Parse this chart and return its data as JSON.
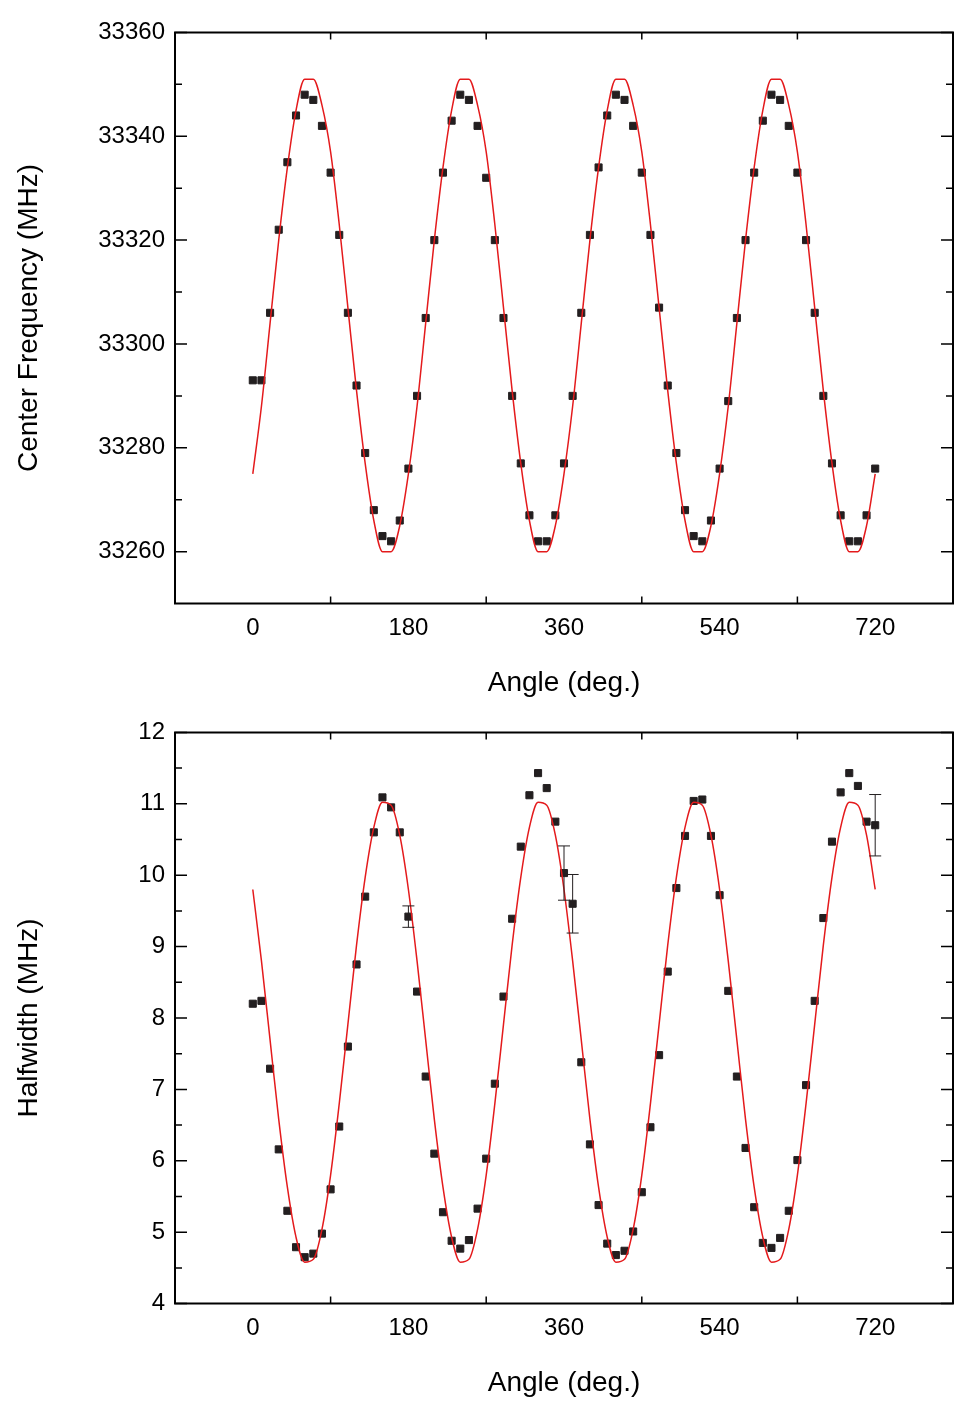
{
  "chart_data": [
    {
      "type": "scatter",
      "xlabel": "Angle (deg.)",
      "ylabel": "Center Frequency (MHz)",
      "xlim": [
        -90,
        810
      ],
      "ylim": [
        33250,
        33360
      ],
      "xticks": [
        {
          "value": -90,
          "label": null
        },
        0,
        {
          "value": 90,
          "label": null
        },
        180,
        {
          "value": 270,
          "label": null
        },
        360,
        {
          "value": 450,
          "label": null
        },
        540,
        {
          "value": 630,
          "label": null
        },
        720,
        {
          "value": 810,
          "label": null
        }
      ],
      "yticks": [
        33260,
        {
          "value": 33270,
          "label": null
        },
        33280,
        {
          "value": 33290,
          "label": null
        },
        33300,
        {
          "value": 33310,
          "label": null
        },
        33320,
        {
          "value": 33330,
          "label": null
        },
        33340,
        {
          "value": 33350,
          "label": null
        },
        33360
      ],
      "grid": false,
      "legend": false,
      "series": [
        {
          "type": "scatter",
          "color": "#231f20",
          "marker": "square",
          "x": [
            0,
            10,
            20,
            30,
            40,
            50,
            60,
            70,
            80,
            90,
            100,
            110,
            120,
            130,
            140,
            150,
            160,
            170,
            180,
            190,
            200,
            210,
            220,
            230,
            240,
            250,
            260,
            270,
            280,
            290,
            300,
            310,
            320,
            330,
            340,
            350,
            360,
            370,
            380,
            390,
            400,
            410,
            420,
            430,
            440,
            450,
            460,
            470,
            480,
            490,
            500,
            510,
            520,
            530,
            540,
            550,
            560,
            570,
            580,
            590,
            600,
            610,
            620,
            630,
            640,
            650,
            660,
            670,
            680,
            690,
            700,
            710,
            720
          ],
          "values": [
            33293,
            33293,
            33306,
            33322,
            33335,
            33344,
            33348,
            33347,
            33342,
            33333,
            33321,
            33306,
            33292,
            33279,
            33268,
            33263,
            33262,
            33266,
            33276,
            33290,
            33305,
            33320,
            33333,
            33343,
            33348,
            33347,
            33342,
            33332,
            33320,
            33305,
            33290,
            33277,
            33267,
            33262,
            33262,
            33267,
            33277,
            33290,
            33306,
            33321,
            33334,
            33344,
            33348,
            33347,
            33342,
            33333,
            33321,
            33307,
            33292,
            33279,
            33268,
            33263,
            33262,
            33266,
            33276,
            33289,
            33305,
            33320,
            33333,
            33343,
            33348,
            33347,
            33342,
            33333,
            33320,
            33306,
            33290,
            33277,
            33267,
            33262,
            33262,
            33267,
            33276
          ]
        },
        {
          "type": "line",
          "color": "#e41a1c",
          "marker": "none",
          "line_style": "solid",
          "x": [
            0,
            10,
            20,
            30,
            40,
            50,
            60,
            70,
            80,
            90,
            100,
            110,
            120,
            130,
            140,
            150,
            160,
            170,
            180,
            190,
            200,
            210,
            220,
            230,
            240,
            250,
            260,
            270,
            280,
            290,
            300,
            310,
            320,
            330,
            340,
            350,
            360,
            370,
            380,
            390,
            400,
            410,
            420,
            430,
            440,
            450,
            460,
            470,
            480,
            490,
            500,
            510,
            520,
            530,
            540,
            550,
            560,
            570,
            580,
            590,
            600,
            610,
            620,
            630,
            640,
            650,
            660,
            670,
            680,
            690,
            700,
            710,
            720
          ],
          "values": [
            33275,
            33288,
            33304,
            33320,
            33334,
            33345,
            33351,
            33351,
            33346,
            33337,
            33323,
            33307,
            33291,
            33277,
            33266,
            33260,
            33260,
            33265,
            33275,
            33288,
            33304,
            33320,
            33334,
            33345,
            33351,
            33351,
            33346,
            33337,
            33323,
            33307,
            33291,
            33277,
            33266,
            33260,
            33260,
            33265,
            33275,
            33288,
            33304,
            33320,
            33334,
            33345,
            33351,
            33351,
            33346,
            33337,
            33323,
            33307,
            33291,
            33277,
            33266,
            33260,
            33260,
            33265,
            33275,
            33288,
            33304,
            33320,
            33334,
            33345,
            33351,
            33351,
            33346,
            33337,
            33323,
            33307,
            33291,
            33277,
            33266,
            33260,
            33260,
            33265,
            33275
          ]
        }
      ]
    },
    {
      "type": "scatter",
      "xlabel": "Angle (deg.)",
      "ylabel": "Halfwidth (MHz)",
      "xlim": [
        -90,
        810
      ],
      "ylim": [
        4,
        12
      ],
      "xticks": [
        {
          "value": -90,
          "label": null
        },
        0,
        {
          "value": 90,
          "label": null
        },
        180,
        {
          "value": 270,
          "label": null
        },
        360,
        {
          "value": 450,
          "label": null
        },
        540,
        {
          "value": 630,
          "label": null
        },
        720,
        {
          "value": 810,
          "label": null
        }
      ],
      "yticks": [
        4,
        {
          "value": 4.5,
          "label": null
        },
        5,
        {
          "value": 5.5,
          "label": null
        },
        6,
        {
          "value": 6.5,
          "label": null
        },
        7,
        {
          "value": 7.5,
          "label": null
        },
        8,
        {
          "value": 8.5,
          "label": null
        },
        9,
        {
          "value": 9.5,
          "label": null
        },
        10,
        {
          "value": 10.5,
          "label": null
        },
        11,
        {
          "value": 11.5,
          "label": null
        },
        12
      ],
      "grid": false,
      "legend": false,
      "series": [
        {
          "type": "scatter",
          "color": "#231f20",
          "marker": "square",
          "x": [
            0,
            10,
            20,
            30,
            40,
            50,
            60,
            70,
            80,
            90,
            100,
            110,
            120,
            130,
            140,
            150,
            160,
            170,
            180,
            190,
            200,
            210,
            220,
            230,
            240,
            250,
            260,
            270,
            280,
            290,
            300,
            310,
            320,
            330,
            340,
            350,
            360,
            370,
            380,
            390,
            400,
            410,
            420,
            430,
            440,
            450,
            460,
            470,
            480,
            490,
            500,
            510,
            520,
            530,
            540,
            550,
            560,
            570,
            580,
            590,
            600,
            610,
            620,
            630,
            640,
            650,
            660,
            670,
            680,
            690,
            700,
            710,
            720
          ],
          "values": [
            8.2,
            8.24,
            7.29,
            6.16,
            5.3,
            4.79,
            4.65,
            4.7,
            4.98,
            5.6,
            6.48,
            7.6,
            8.75,
            9.7,
            10.6,
            11.09,
            10.95,
            10.6,
            9.42,
            8.37,
            7.18,
            6.1,
            5.28,
            4.88,
            4.77,
            4.89,
            5.33,
            6.03,
            7.08,
            8.3,
            9.39,
            10.4,
            11.12,
            11.43,
            11.22,
            10.75,
            10.03,
            9.6,
            7.38,
            6.23,
            5.38,
            4.84,
            4.68,
            4.74,
            5.01,
            5.56,
            6.47,
            7.48,
            8.65,
            9.82,
            10.55,
            11.04,
            11.06,
            10.55,
            9.72,
            8.38,
            7.18,
            6.18,
            5.35,
            4.85,
            4.78,
            4.92,
            5.3,
            6.01,
            7.06,
            8.24,
            9.4,
            10.47,
            11.16,
            11.43,
            11.25,
            10.75,
            10.7
          ],
          "errors": [
            null,
            null,
            null,
            null,
            null,
            null,
            null,
            null,
            null,
            null,
            null,
            null,
            null,
            null,
            null,
            null,
            null,
            null,
            0.15,
            null,
            null,
            null,
            null,
            null,
            null,
            null,
            null,
            null,
            null,
            null,
            null,
            null,
            null,
            null,
            null,
            null,
            0.38,
            0.41,
            null,
            null,
            null,
            null,
            null,
            null,
            null,
            null,
            null,
            null,
            null,
            null,
            null,
            null,
            null,
            null,
            null,
            null,
            null,
            null,
            null,
            null,
            null,
            null,
            null,
            null,
            null,
            null,
            null,
            null,
            null,
            null,
            null,
            null,
            0.43
          ]
        },
        {
          "type": "line",
          "color": "#e41a1c",
          "marker": "none",
          "line_style": "solid",
          "x": [
            0,
            10,
            20,
            30,
            40,
            50,
            60,
            70,
            80,
            90,
            100,
            110,
            120,
            130,
            140,
            150,
            160,
            170,
            180,
            190,
            200,
            210,
            220,
            230,
            240,
            250,
            260,
            270,
            280,
            290,
            300,
            310,
            320,
            330,
            340,
            350,
            360,
            370,
            380,
            390,
            400,
            410,
            420,
            430,
            440,
            450,
            460,
            470,
            480,
            490,
            500,
            510,
            520,
            530,
            540,
            550,
            560,
            570,
            580,
            590,
            600,
            610,
            620,
            630,
            640,
            650,
            660,
            670,
            680,
            690,
            700,
            710,
            720
          ],
          "values": [
            9.8,
            8.8,
            7.69,
            6.58,
            5.63,
            4.93,
            4.58,
            4.62,
            5.04,
            5.8,
            6.8,
            7.91,
            9.02,
            9.97,
            10.67,
            11.02,
            10.98,
            10.56,
            9.8,
            8.8,
            7.69,
            6.58,
            5.63,
            4.93,
            4.58,
            4.62,
            5.04,
            5.8,
            6.8,
            7.91,
            9.02,
            9.97,
            10.67,
            11.02,
            10.98,
            10.56,
            9.8,
            8.8,
            7.69,
            6.58,
            5.63,
            4.93,
            4.58,
            4.62,
            5.04,
            5.8,
            6.8,
            7.91,
            9.02,
            9.97,
            10.67,
            11.02,
            10.98,
            10.56,
            9.8,
            8.8,
            7.69,
            6.58,
            5.63,
            4.93,
            4.58,
            4.62,
            5.04,
            5.8,
            6.8,
            7.91,
            9.02,
            9.97,
            10.67,
            11.02,
            10.98,
            10.56,
            9.8
          ]
        }
      ]
    }
  ]
}
